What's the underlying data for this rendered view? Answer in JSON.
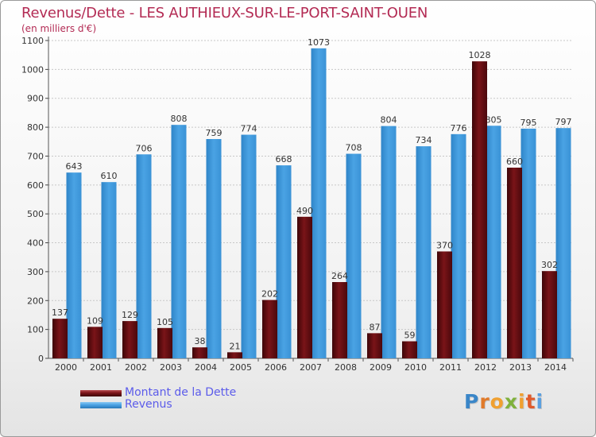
{
  "header": {
    "title": "Revenus/Dette - LES AUTHIEUX-SUR-LE-PORT-SAINT-OUEN",
    "subtitle": "(en milliers d'€)"
  },
  "legend": {
    "debt_label": "Montant de la Dette",
    "revenue_label": "Revenus"
  },
  "brand": {
    "text": "Proxiti"
  },
  "colors": {
    "debt": "#7a1418",
    "revenue": "#4aa3e4",
    "title": "#b32b54",
    "legend_text": "#5b5bea"
  },
  "chart_data": {
    "type": "bar",
    "title": "Revenus/Dette - LES AUTHIEUX-SUR-LE-PORT-SAINT-OUEN",
    "subtitle": "(en milliers d'€)",
    "categories": [
      "2000",
      "2001",
      "2002",
      "2003",
      "2004",
      "2005",
      "2006",
      "2007",
      "2008",
      "2009",
      "2010",
      "2011",
      "2012",
      "2013",
      "2014"
    ],
    "series": [
      {
        "name": "Montant de la Dette",
        "values": [
          137,
          109,
          129,
          105,
          38,
          21,
          202,
          490,
          264,
          87,
          59,
          370,
          1028,
          660,
          302
        ]
      },
      {
        "name": "Revenus",
        "values": [
          643,
          610,
          706,
          808,
          759,
          774,
          668,
          1073,
          708,
          804,
          734,
          776,
          805,
          795,
          797
        ]
      }
    ],
    "ylim": [
      0,
      1100
    ],
    "yticks": [
      0,
      100,
      200,
      300,
      400,
      500,
      600,
      700,
      800,
      900,
      1000,
      1100
    ],
    "grid": true,
    "legend": "bottom-left"
  }
}
